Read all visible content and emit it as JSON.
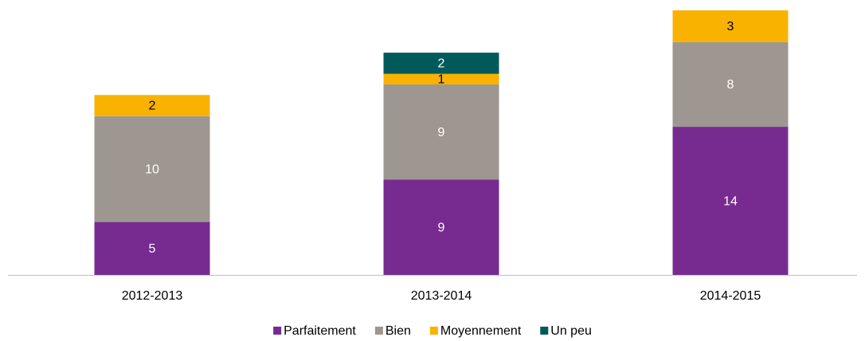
{
  "chart_data": {
    "type": "stacked_bar",
    "categories": [
      "2012-2013",
      "2013-2014",
      "2014-2015"
    ],
    "series": [
      {
        "name": "Parfaitement",
        "color": "#772b90",
        "label_color": "#ffffff",
        "values": [
          5,
          9,
          14
        ]
      },
      {
        "name": "Bien",
        "color": "#9e9791",
        "label_color": "#ffffff",
        "values": [
          10,
          9,
          8
        ]
      },
      {
        "name": "Moyennement",
        "color": "#f9b200",
        "label_color": "#000000",
        "values": [
          2,
          1,
          3
        ]
      },
      {
        "name": "Un peu",
        "color": "#005a5b",
        "label_color": "#ffffff",
        "values": [
          null,
          2,
          null
        ]
      }
    ],
    "legend": "bottom"
  }
}
